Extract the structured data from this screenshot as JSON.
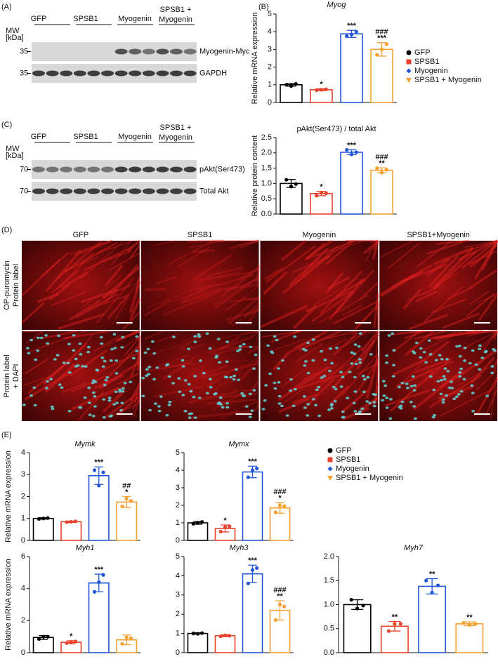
{
  "panel_labels": [
    "(A)",
    "(B)",
    "(C)",
    "(D)",
    "(E)"
  ],
  "blots": [
    {
      "lanes": [
        [
          "GFP"
        ],
        [
          "SPSB1"
        ],
        [
          "Myogenin"
        ],
        [
          "SPSB1 +",
          "Myogenin"
        ]
      ],
      "mw_label": [
        "MW",
        "[kDa]"
      ],
      "rows": [
        {
          "mw": 35,
          "label": "Myogenin-Myc"
        },
        {
          "mw": 35,
          "label": "GAPDH"
        }
      ]
    },
    {
      "lanes": [
        [
          "GFP"
        ],
        [
          "SPSB1"
        ],
        [
          "Myogenin"
        ],
        [
          "SPSB1 +",
          "Myogenin"
        ]
      ],
      "mw_label": [
        "MW",
        "[kDa]"
      ],
      "rows": [
        {
          "mw": 70,
          "label": "pAkt(Ser473)"
        },
        {
          "mw": 70,
          "label": "Total Akt"
        }
      ]
    }
  ],
  "microscopy": {
    "columns": [
      "GFP",
      "SPSB1",
      "Myogenin",
      "SPSB1+Myogenin"
    ],
    "row_labels": [
      [
        "OP-puromycin",
        "Protein label"
      ],
      [
        "Protein label",
        "+ DAPI"
      ]
    ]
  },
  "legends": [
    {
      "names": [
        "GFP",
        "SPSB1",
        "Myogenin",
        "SPSB1 + Myogenin"
      ],
      "colors": [
        "#000000",
        "#e8412c",
        "#2356d8",
        "#f5a030"
      ],
      "markers": [
        "circle",
        "square",
        "diamond",
        "triangle"
      ]
    },
    {
      "names": [
        "GFP",
        "SPSB1",
        "Myogenin",
        "SPSB1 + Myogenin"
      ],
      "colors": [
        "#000000",
        "#e8412c",
        "#2356d8",
        "#f5a030"
      ],
      "markers": [
        "circle",
        "square",
        "diamond",
        "triangle"
      ]
    }
  ],
  "chart_data": [
    {
      "type": "bar",
      "title": "Myog",
      "title_italic": true,
      "ylabel": "Relative mRNA expression",
      "ylim": [
        0,
        5
      ],
      "yticks": [
        0,
        1,
        2,
        3,
        4,
        5
      ],
      "colors": [
        "#000000",
        "#e8412c",
        "#2356d8",
        "#f5a030"
      ],
      "values": [
        1.0,
        0.72,
        3.88,
        3.0
      ],
      "errors": [
        0.08,
        0.05,
        0.2,
        0.38
      ],
      "points": [
        [
          1.0,
          0.93,
          1.05
        ],
        [
          0.7,
          0.72,
          0.75
        ],
        [
          3.75,
          3.85,
          4.0
        ],
        [
          2.7,
          3.0,
          3.3
        ]
      ],
      "annotations": [
        [],
        [
          "*"
        ],
        [
          "***"
        ],
        [
          "###",
          "***"
        ]
      ]
    },
    {
      "type": "bar",
      "title": "pAkt(Ser473) / total Akt",
      "title_italic": false,
      "ylabel": "Relative protein content",
      "ylim": [
        0,
        2.5
      ],
      "yticks": [
        {
          "value": 0,
          "label": "0.0"
        },
        {
          "value": 0.5,
          "label": "0.5"
        },
        {
          "value": 1,
          "label": "1.0"
        },
        {
          "value": 1.5,
          "label": "1.5"
        },
        {
          "value": 2,
          "label": "2.0"
        },
        {
          "value": 2.5,
          "label": "2.5"
        }
      ],
      "colors": [
        "#000000",
        "#e8412c",
        "#2356d8",
        "#f5a030"
      ],
      "values": [
        1.0,
        0.67,
        2.02,
        1.43
      ],
      "errors": [
        0.13,
        0.07,
        0.08,
        0.08
      ],
      "points": [
        [
          1.12,
          0.9,
          0.98
        ],
        [
          0.6,
          0.7,
          0.68
        ],
        [
          2.1,
          1.95,
          2.02
        ],
        [
          1.5,
          1.35,
          1.45
        ]
      ],
      "annotations": [
        [],
        [
          "*"
        ],
        [
          "***"
        ],
        [
          "###",
          "**"
        ]
      ]
    },
    {
      "type": "bar",
      "title": "Mymk",
      "title_italic": true,
      "ylabel": "Relative mRNA expression",
      "ylim": [
        0,
        4
      ],
      "yticks": [
        0,
        1,
        2,
        3,
        4
      ],
      "colors": [
        "#000000",
        "#e8412c",
        "#2356d8",
        "#f5a030"
      ],
      "values": [
        1.0,
        0.85,
        2.95,
        1.75
      ],
      "errors": [
        0.03,
        0.03,
        0.4,
        0.25
      ],
      "points": [
        [
          0.98,
          1.0,
          1.02
        ],
        [
          0.83,
          0.85,
          0.87
        ],
        [
          3.2,
          2.5,
          3.1
        ],
        [
          1.55,
          1.9,
          1.8
        ]
      ],
      "annotations": [
        [],
        [],
        [
          "***"
        ],
        [
          "##",
          "*"
        ]
      ]
    },
    {
      "type": "bar",
      "title": "Mymx",
      "title_italic": true,
      "ylim": [
        0,
        5
      ],
      "yticks": [
        0,
        1,
        2,
        3,
        4,
        5
      ],
      "colors": [
        "#000000",
        "#e8412c",
        "#2356d8",
        "#f5a030"
      ],
      "values": [
        1.0,
        0.68,
        3.9,
        1.85
      ],
      "errors": [
        0.08,
        0.2,
        0.33,
        0.3
      ],
      "points": [
        [
          0.95,
          1.0,
          1.05
        ],
        [
          0.5,
          0.75,
          0.8
        ],
        [
          3.6,
          4.0,
          4.1
        ],
        [
          1.6,
          2.0,
          1.95
        ]
      ],
      "annotations": [
        [],
        [
          "*"
        ],
        [
          "***"
        ],
        [
          "###",
          "*"
        ]
      ]
    },
    {
      "type": "bar",
      "title": "Myh1",
      "title_italic": true,
      "ylabel": "Relative mRNA expression",
      "ylim": [
        0,
        6
      ],
      "yticks": [
        0,
        2,
        4,
        6
      ],
      "colors": [
        "#000000",
        "#e8412c",
        "#2356d8",
        "#f5a030"
      ],
      "values": [
        0.95,
        0.65,
        4.35,
        0.8
      ],
      "errors": [
        0.12,
        0.1,
        0.55,
        0.3
      ],
      "points": [
        [
          0.85,
          1.0,
          1.0
        ],
        [
          0.6,
          0.65,
          0.7
        ],
        [
          3.8,
          4.4,
          4.85
        ],
        [
          0.55,
          0.95,
          0.9
        ]
      ],
      "annotations": [
        [],
        [
          "*"
        ],
        [
          "***"
        ],
        []
      ]
    },
    {
      "type": "bar",
      "title": "Myh3",
      "title_italic": true,
      "ylim": [
        0,
        5
      ],
      "yticks": [
        0,
        1,
        2,
        3,
        4,
        5
      ],
      "colors": [
        "#000000",
        "#e8412c",
        "#2356d8",
        "#f5a030"
      ],
      "values": [
        1.0,
        0.88,
        4.1,
        2.2
      ],
      "errors": [
        0.03,
        0.05,
        0.45,
        0.5
      ],
      "points": [
        [
          1.0,
          0.98,
          1.02
        ],
        [
          0.85,
          0.9,
          0.88
        ],
        [
          3.6,
          4.3,
          4.4
        ],
        [
          1.7,
          2.5,
          2.4
        ]
      ],
      "annotations": [
        [],
        [],
        [
          "***"
        ],
        [
          "###",
          "**"
        ]
      ]
    },
    {
      "type": "bar",
      "title": "Myh7",
      "title_italic": true,
      "ylim": [
        0,
        2
      ],
      "yticks": [
        {
          "value": 0,
          "label": "0.0"
        },
        {
          "value": 0.5,
          "label": "0.5"
        },
        {
          "value": 1,
          "label": "1.0"
        },
        {
          "value": 1.5,
          "label": "1.5"
        },
        {
          "value": 2,
          "label": "2.0"
        }
      ],
      "colors": [
        "#000000",
        "#e8412c",
        "#2356d8",
        "#f5a030"
      ],
      "values": [
        1.0,
        0.55,
        1.38,
        0.6
      ],
      "errors": [
        0.1,
        0.1,
        0.16,
        0.04
      ],
      "points": [
        [
          1.1,
          0.92,
          0.98
        ],
        [
          0.45,
          0.6,
          0.6
        ],
        [
          1.5,
          1.25,
          1.4
        ],
        [
          0.62,
          0.58,
          0.6
        ]
      ],
      "annotations": [
        [],
        [
          "**"
        ],
        [
          "**"
        ],
        [
          "**"
        ]
      ]
    }
  ]
}
